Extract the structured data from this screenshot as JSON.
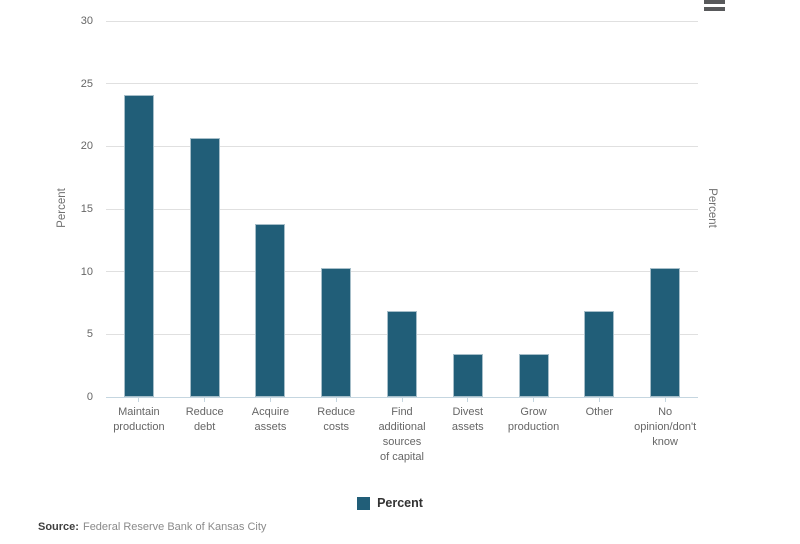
{
  "chart": {
    "ylabel_left": "Percent",
    "ylabel_right": "Percent",
    "legend_label": "Percent",
    "menu_icon": "hamburger-menu-icon"
  },
  "source": {
    "label": "Source:",
    "text": "Federal Reserve Bank of Kansas City"
  },
  "colors": {
    "bar": "#215e78",
    "gridline": "#e0e0e0",
    "axis_line": "#c5d6e0",
    "tick_text": "#666666",
    "legend_text": "#333333"
  },
  "chart_data": {
    "type": "bar",
    "title": "",
    "categories": [
      "Maintain\nproduction",
      "Reduce\ndebt",
      "Acquire\nassets",
      "Reduce\ncosts",
      "Find\nadditional\nsources\nof capital",
      "Divest\nassets",
      "Grow\nproduction",
      "Other",
      "No\nopinion/don't\nknow"
    ],
    "series": [
      {
        "name": "Percent",
        "values": [
          24.1,
          20.7,
          13.8,
          10.3,
          6.9,
          3.4,
          3.4,
          6.9,
          10.3
        ]
      }
    ],
    "xlabel": "",
    "ylabel": "Percent",
    "ylim": [
      0,
      30
    ],
    "yticks": [
      0,
      5,
      10,
      15,
      20,
      25,
      30
    ],
    "grid": true,
    "legend_position": "bottom-center",
    "source_note": "Source: Federal Reserve Bank of Kansas City"
  }
}
